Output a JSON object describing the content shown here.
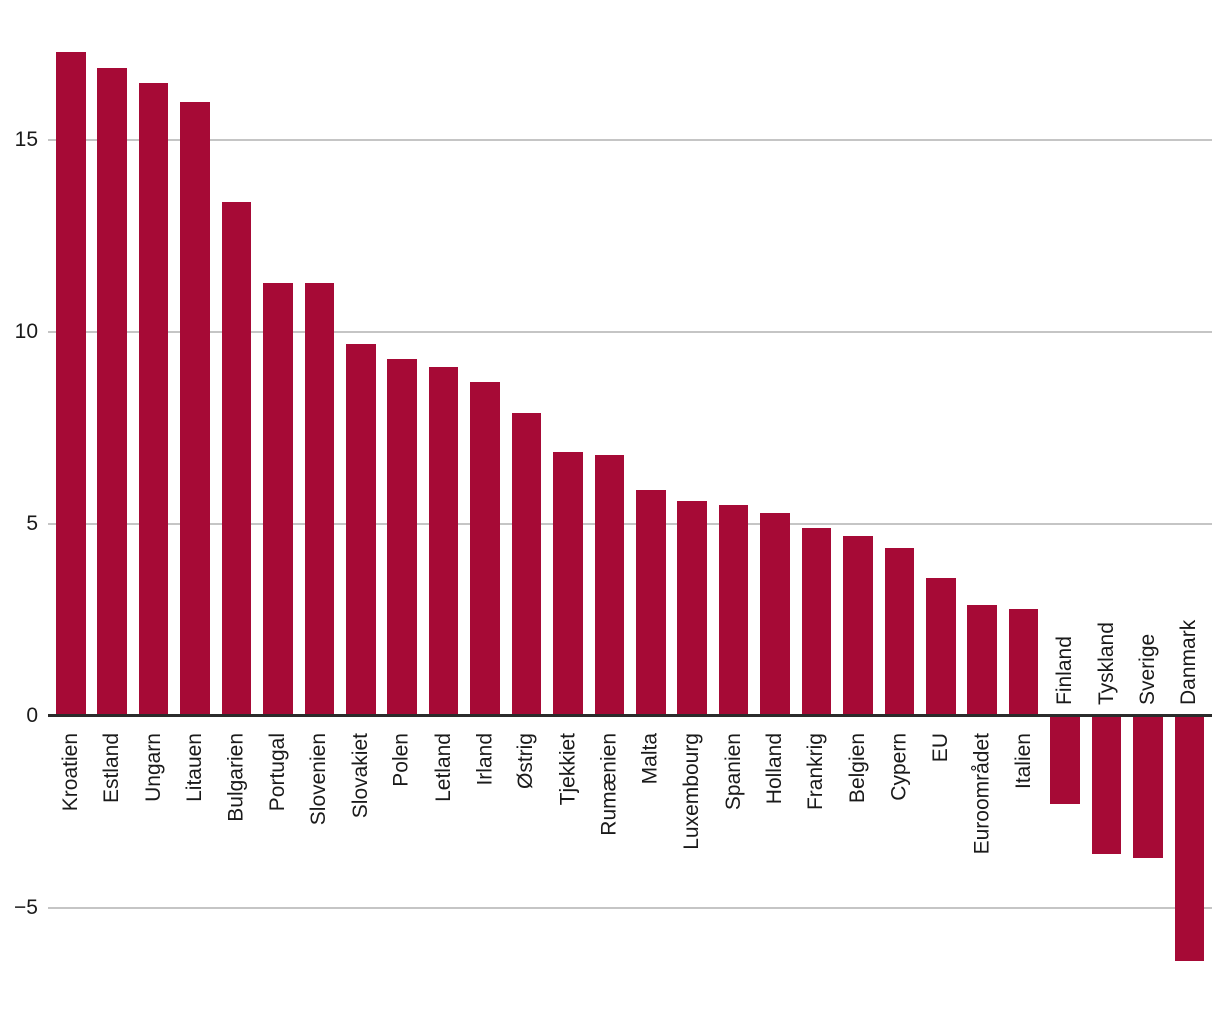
{
  "chart_data": {
    "type": "bar",
    "categories": [
      "Kroatien",
      "Estland",
      "Ungarn",
      "Litauen",
      "Bulgarien",
      "Portugal",
      "Slovenien",
      "Slovakiet",
      "Polen",
      "Letland",
      "Irland",
      "Østrig",
      "Tjekkiet",
      "Rumænien",
      "Malta",
      "Luxembourg",
      "Spanien",
      "Holland",
      "Frankrig",
      "Belgien",
      "Cypern",
      "EU",
      "Euroområdet",
      "Italien",
      "Finland",
      "Tyskland",
      "Sverige",
      "Danmark"
    ],
    "values": [
      17.3,
      16.9,
      16.5,
      16.0,
      13.4,
      11.3,
      11.3,
      9.7,
      9.3,
      9.1,
      8.7,
      7.9,
      6.9,
      6.8,
      5.9,
      5.6,
      5.5,
      5.3,
      4.9,
      4.7,
      4.4,
      3.6,
      2.9,
      2.8,
      -2.3,
      -3.6,
      -3.7,
      -6.4
    ],
    "yticks": [
      {
        "value": 15,
        "label": "15"
      },
      {
        "value": 10,
        "label": "10"
      },
      {
        "value": 5,
        "label": "5"
      },
      {
        "value": 0,
        "label": "0"
      },
      {
        "value": -5,
        "label": "−5"
      }
    ],
    "ylim": [
      -7.9,
      18.6
    ],
    "grid": "horizontal",
    "bar_label_rotation": 90,
    "colors": {
      "bar": "#a60a36",
      "axis": "#2b2b2b",
      "gridline": "#c5c5c5",
      "label": "#1a1a1a",
      "background": "#ffffff"
    }
  }
}
